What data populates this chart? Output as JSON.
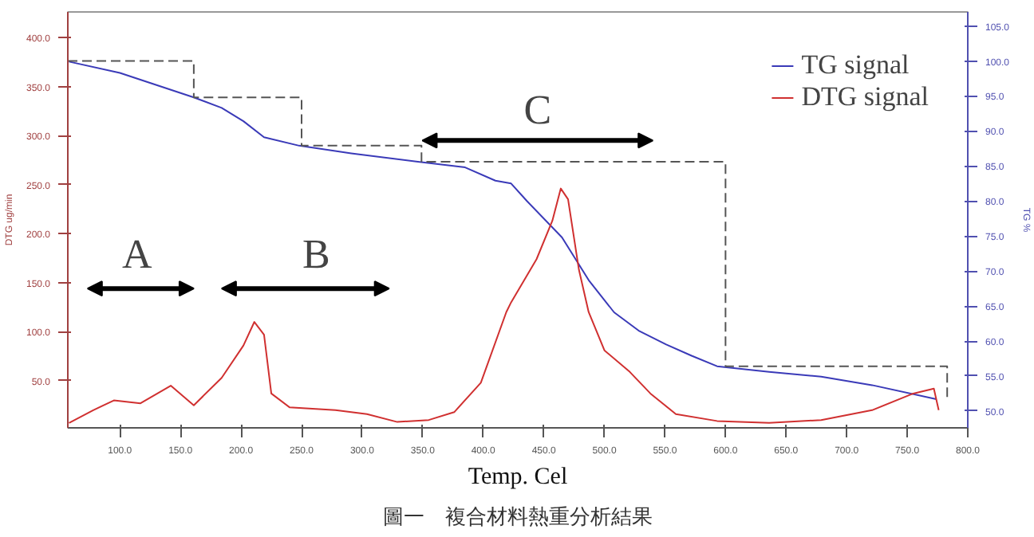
{
  "chart_data": {
    "type": "line",
    "xlabel": "Temp. Cel",
    "ylabel": "DTG ug/min",
    "y2label": "TG %",
    "xlim": [
      57,
      800
    ],
    "ylim": [
      2,
      426
    ],
    "y2lim": [
      47.6,
      107
    ],
    "xticks": [
      {
        "value": 100,
        "label": "100.0"
      },
      {
        "value": 150,
        "label": "150.0"
      },
      {
        "value": 200,
        "label": "200.0"
      },
      {
        "value": 250,
        "label": "250.0"
      },
      {
        "value": 300,
        "label": "300.0"
      },
      {
        "value": 350,
        "label": "350.0"
      },
      {
        "value": 400,
        "label": "400.0"
      },
      {
        "value": 450,
        "label": "450.0"
      },
      {
        "value": 500,
        "label": "500.0"
      },
      {
        "value": 550,
        "label": "550.0"
      },
      {
        "value": 600,
        "label": "600.0"
      },
      {
        "value": 650,
        "label": "650.0"
      },
      {
        "value": 700,
        "label": "700.0"
      },
      {
        "value": 750,
        "label": "750.0"
      },
      {
        "value": 800,
        "label": "800.0"
      }
    ],
    "yticks": [
      {
        "value": 50,
        "label": "50.0"
      },
      {
        "value": 100,
        "label": "100.0"
      },
      {
        "value": 150,
        "label": "150.0"
      },
      {
        "value": 200,
        "label": "200.0"
      },
      {
        "value": 250,
        "label": "250.0"
      },
      {
        "value": 300,
        "label": "300.0"
      },
      {
        "value": 350,
        "label": "350.0"
      },
      {
        "value": 400,
        "label": "400.0"
      }
    ],
    "y2ticks": [
      {
        "value": 50,
        "label": "50.0"
      },
      {
        "value": 55,
        "label": "55.0"
      },
      {
        "value": 60,
        "label": "60.0"
      },
      {
        "value": 65,
        "label": "65.0"
      },
      {
        "value": 70,
        "label": "70.0"
      },
      {
        "value": 75,
        "label": "75.0"
      },
      {
        "value": 80,
        "label": "80.0"
      },
      {
        "value": 85,
        "label": "85.0"
      },
      {
        "value": 90,
        "label": "90.0"
      },
      {
        "value": 95,
        "label": "95.0"
      },
      {
        "value": 100,
        "label": "100.0"
      },
      {
        "value": 105,
        "label": "105.0"
      }
    ],
    "grid": false,
    "legend": "top right",
    "marker": "none",
    "series": [
      {
        "name": "TG signal",
        "color": "#3a3ab8",
        "axis": "y2",
        "x": [
          58,
          100,
          161,
          184,
          202,
          219,
          248,
          291,
          346,
          385,
          410,
          423,
          436,
          465,
          487,
          508,
          529,
          551,
          572,
          593,
          636,
          679,
          721,
          774
        ],
        "values": [
          99.9,
          98.3,
          94.8,
          93.3,
          91.4,
          89.1,
          87.9,
          86.8,
          85.6,
          84.8,
          82.9,
          82.5,
          80,
          74.8,
          68.7,
          64.1,
          61.4,
          59.5,
          57.9,
          56.4,
          55.6,
          54.9,
          53.7,
          51.7
        ]
      },
      {
        "name": "DTG signal",
        "color": "#d03030",
        "x": [
          58,
          78,
          95,
          117,
          142,
          161,
          184,
          202,
          211,
          219,
          225,
          240,
          278,
          304,
          329,
          355,
          376,
          398,
          419,
          423,
          444,
          457,
          464,
          470,
          479,
          487,
          500,
          521,
          538,
          559,
          593,
          636,
          679,
          721,
          755,
          772,
          776
        ],
        "values": [
          7,
          20,
          30,
          27,
          45,
          25,
          53,
          86,
          110,
          97,
          37,
          23,
          20,
          16,
          8,
          10,
          18,
          48,
          120,
          130,
          174,
          213,
          246,
          235,
          163,
          120,
          81,
          59,
          37,
          16,
          9,
          7,
          10,
          20,
          37,
          42,
          20
        ]
      },
      {
        "type": "line",
        "line_style": "dashed",
        "color": "#555555",
        "axis": "y2",
        "x": [
          57,
          161,
          161,
          250,
          250,
          349,
          349,
          600,
          600,
          783,
          783
        ],
        "values": [
          100,
          100,
          94.8,
          94.8,
          87.9,
          87.9,
          85.6,
          85.6,
          56.4,
          56.4,
          51.7
        ]
      }
    ],
    "annotations": [
      "A",
      "B",
      "C",
      "圖一　複合材料熱重分析結果"
    ]
  }
}
